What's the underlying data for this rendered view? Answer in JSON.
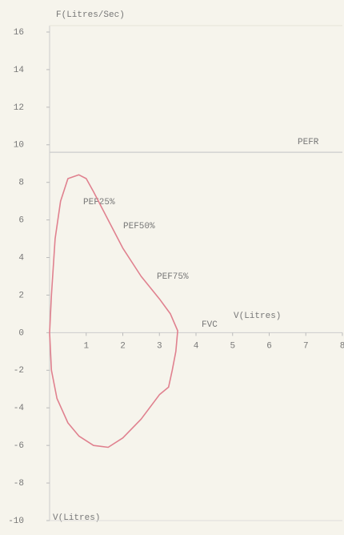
{
  "chart_data": {
    "type": "line",
    "y_label": "F(Litres/Sec)",
    "x_label": "V(Litres)",
    "bottom_label": "V(Litres)",
    "xlim": [
      0,
      8
    ],
    "xticks": [
      1,
      2,
      3,
      4,
      5,
      6,
      7,
      8
    ],
    "ylim": [
      -10,
      16
    ],
    "yticks": [
      16,
      14,
      12,
      10,
      8,
      6,
      4,
      2,
      0,
      -2,
      -4,
      -6,
      -8,
      -10
    ],
    "reference_line": {
      "label": "PEFR",
      "value": 9.6
    },
    "annotations": [
      "PEF25%",
      "PEF50%",
      "PEF75%",
      "FVC"
    ],
    "series": [
      {
        "color": "#e0818f",
        "x": [
          0,
          0.05,
          0.15,
          0.3,
          0.5,
          0.8,
          1.0,
          1.2,
          1.6,
          2.0,
          2.5,
          3.0,
          3.3,
          3.5,
          3.45,
          3.35,
          3.25,
          3.0,
          2.5,
          2.0,
          1.6,
          1.2,
          0.8,
          0.5,
          0.2,
          0.05,
          0
        ],
        "values": [
          0,
          2,
          5,
          7,
          8.2,
          8.4,
          8.2,
          7.5,
          6,
          4.5,
          3,
          1.8,
          1,
          0.1,
          -1,
          -2,
          -2.9,
          -3.3,
          -4.6,
          -5.6,
          -6.1,
          -6.0,
          -5.5,
          -4.8,
          -3.5,
          -2,
          0
        ]
      }
    ]
  }
}
